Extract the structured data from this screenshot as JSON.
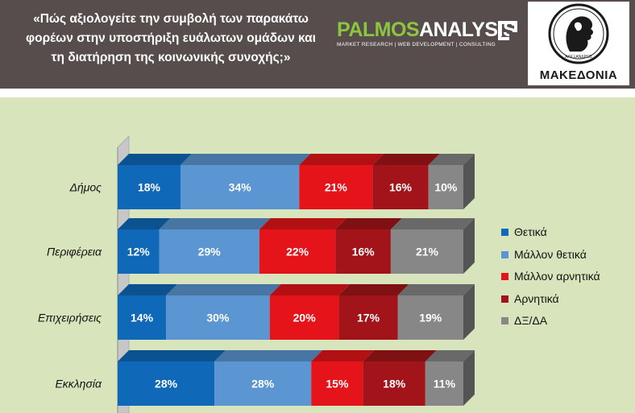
{
  "header": {
    "question_lines": [
      "«Πώς αξιολογείτε την συμβολή των παρακάτω",
      "φορέων στην υποστήριξη ευάλωτων ομάδων και",
      "τη διατήρηση της κοινωνικής συνοχής;»"
    ],
    "brand_a": "PALMOS",
    "brand_b": "ANALYSIS",
    "brand_tagline": "MARKET RESEARCH | WEB DEVELOPMENT | CONSULTING",
    "newspaper_name": "ΜΑΚΕΔΟΝΙΑ",
    "seal_text": "ΑΛΕΞΑΝΔΡΟΣ"
  },
  "colors": {
    "header_bg": "#574d4c",
    "chart_bg": "#d8e4bc",
    "brand_green": "#8cc63f"
  },
  "chart_data": {
    "type": "bar",
    "orientation": "horizontal",
    "stacked": true,
    "percent_stacked": true,
    "three_d": true,
    "categories": [
      "Δήμος",
      "Περιφέρεια",
      "Επιχειρήσεις",
      "Εκκλησία"
    ],
    "series": [
      {
        "name": "Θετικά",
        "color": "#1068b8",
        "values": [
          18,
          12,
          14,
          28
        ]
      },
      {
        "name": "Μάλλον θετικά",
        "color": "#5b96d2",
        "values": [
          34,
          29,
          30,
          28
        ]
      },
      {
        "name": "Μάλλον αρνητικά",
        "color": "#e5141a",
        "values": [
          21,
          22,
          20,
          15
        ]
      },
      {
        "name": "Αρνητικά",
        "color": "#a3141a",
        "values": [
          16,
          16,
          17,
          18
        ]
      },
      {
        "name": "ΔΞ/ΔΑ",
        "color": "#878787",
        "values": [
          10,
          21,
          19,
          11
        ]
      }
    ],
    "value_suffix": "%",
    "legend_position": "right",
    "grid": false
  }
}
